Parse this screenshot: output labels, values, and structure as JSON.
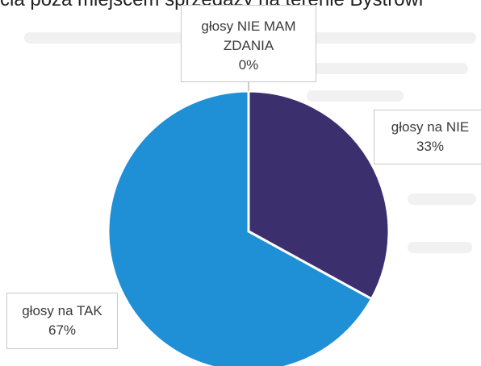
{
  "header_fragment": "cia poza miejscem sprzedaży na terenie Bystrowi",
  "chart_data": {
    "type": "pie",
    "title": "",
    "slices": [
      {
        "label": "głosy NIE MAM ZDANIA",
        "label_lines": [
          "głosy NIE MAM",
          "ZDANIA"
        ],
        "value": 0,
        "pct_label": "0%",
        "color": "#2e6aa8"
      },
      {
        "label": "głosy na NIE",
        "label_lines": [
          "głosy na NIE"
        ],
        "value": 33,
        "pct_label": "33%",
        "color": "#3b2f6e"
      },
      {
        "label": "głosy na TAK",
        "label_lines": [
          "głosy na TAK"
        ],
        "value": 67,
        "pct_label": "67%",
        "color": "#1f8fd6"
      }
    ],
    "start": "12 o'clock",
    "direction": "clockwise",
    "legend": "none"
  }
}
